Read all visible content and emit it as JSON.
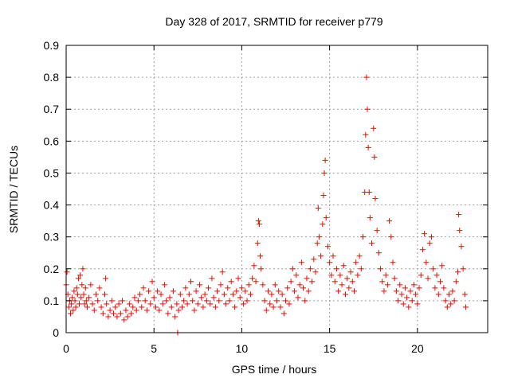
{
  "chart_data": {
    "type": "scatter",
    "title": "Day 328 of 2017, SRMTID for receiver p779",
    "xlabel": "GPS time / hours",
    "ylabel": "SRMTID / TECUs",
    "xlim": [
      0,
      24
    ],
    "ylim": [
      0,
      0.9
    ],
    "xticks": [
      0,
      5,
      10,
      15,
      20
    ],
    "xtick_labels": [
      "0",
      "5",
      "10",
      "15",
      "20"
    ],
    "yticks": [
      0,
      0.1,
      0.2,
      0.3,
      0.4,
      0.5,
      0.6,
      0.7,
      0.8,
      0.9
    ],
    "ytick_labels": [
      "0",
      "0.1",
      "0.2",
      "0.3",
      "0.4",
      "0.5",
      "0.6",
      "0.7",
      "0.8",
      "0.9"
    ],
    "grid": true,
    "marker": "plus",
    "series": [
      {
        "name": "SRMTID",
        "color": "#ff0000",
        "points": [
          [
            0.0,
            0.15
          ],
          [
            0.05,
            0.19
          ],
          [
            0.1,
            0.12
          ],
          [
            0.15,
            0.08
          ],
          [
            0.2,
            0.1
          ],
          [
            0.25,
            0.06
          ],
          [
            0.3,
            0.09
          ],
          [
            0.35,
            0.11
          ],
          [
            0.4,
            0.07
          ],
          [
            0.45,
            0.13
          ],
          [
            0.5,
            0.1
          ],
          [
            0.55,
            0.08
          ],
          [
            0.6,
            0.14
          ],
          [
            0.65,
            0.12
          ],
          [
            0.7,
            0.17
          ],
          [
            0.75,
            0.09
          ],
          [
            0.8,
            0.18
          ],
          [
            0.85,
            0.11
          ],
          [
            0.9,
            0.15
          ],
          [
            0.95,
            0.2
          ],
          [
            1.0,
            0.12
          ],
          [
            1.05,
            0.09
          ],
          [
            1.1,
            0.14
          ],
          [
            1.15,
            0.1
          ],
          [
            1.2,
            0.08
          ],
          [
            1.3,
            0.11
          ],
          [
            1.4,
            0.15
          ],
          [
            1.5,
            0.09
          ],
          [
            1.6,
            0.07
          ],
          [
            1.7,
            0.12
          ],
          [
            1.8,
            0.1
          ],
          [
            1.9,
            0.14
          ],
          [
            2.0,
            0.08
          ],
          [
            2.1,
            0.06
          ],
          [
            2.2,
            0.12
          ],
          [
            2.25,
            0.17
          ],
          [
            2.3,
            0.09
          ],
          [
            2.4,
            0.05
          ],
          [
            2.5,
            0.07
          ],
          [
            2.6,
            0.1
          ],
          [
            2.7,
            0.06
          ],
          [
            2.8,
            0.08
          ],
          [
            2.9,
            0.05
          ],
          [
            3.0,
            0.09
          ],
          [
            3.1,
            0.06
          ],
          [
            3.2,
            0.1
          ],
          [
            3.3,
            0.04
          ],
          [
            3.4,
            0.07
          ],
          [
            3.5,
            0.05
          ],
          [
            3.6,
            0.09
          ],
          [
            3.7,
            0.06
          ],
          [
            3.8,
            0.08
          ],
          [
            3.9,
            0.11
          ],
          [
            4.0,
            0.07
          ],
          [
            4.1,
            0.1
          ],
          [
            4.2,
            0.12
          ],
          [
            4.3,
            0.08
          ],
          [
            4.4,
            0.14
          ],
          [
            4.5,
            0.1
          ],
          [
            4.6,
            0.07
          ],
          [
            4.7,
            0.13
          ],
          [
            4.8,
            0.09
          ],
          [
            4.9,
            0.16
          ],
          [
            5.0,
            0.11
          ],
          [
            5.1,
            0.08
          ],
          [
            5.2,
            0.13
          ],
          [
            5.3,
            0.07
          ],
          [
            5.4,
            0.12
          ],
          [
            5.5,
            0.09
          ],
          [
            5.6,
            0.15
          ],
          [
            5.7,
            0.1
          ],
          [
            5.8,
            0.06
          ],
          [
            5.9,
            0.11
          ],
          [
            6.0,
            0.08
          ],
          [
            6.1,
            0.13
          ],
          [
            6.2,
            0.05
          ],
          [
            6.3,
            0.09
          ],
          [
            6.35,
            0.0
          ],
          [
            6.4,
            0.07
          ],
          [
            6.5,
            0.12
          ],
          [
            6.6,
            0.08
          ],
          [
            6.7,
            0.1
          ],
          [
            6.8,
            0.14
          ],
          [
            6.9,
            0.09
          ],
          [
            7.0,
            0.12
          ],
          [
            7.1,
            0.16
          ],
          [
            7.2,
            0.1
          ],
          [
            7.3,
            0.07
          ],
          [
            7.4,
            0.13
          ],
          [
            7.5,
            0.09
          ],
          [
            7.6,
            0.15
          ],
          [
            7.7,
            0.11
          ],
          [
            7.8,
            0.08
          ],
          [
            7.9,
            0.12
          ],
          [
            8.0,
            0.1
          ],
          [
            8.1,
            0.14
          ],
          [
            8.2,
            0.09
          ],
          [
            8.3,
            0.17
          ],
          [
            8.4,
            0.11
          ],
          [
            8.5,
            0.08
          ],
          [
            8.6,
            0.13
          ],
          [
            8.7,
            0.1
          ],
          [
            8.8,
            0.15
          ],
          [
            8.9,
            0.19
          ],
          [
            9.0,
            0.12
          ],
          [
            9.1,
            0.09
          ],
          [
            9.2,
            0.14
          ],
          [
            9.3,
            0.1
          ],
          [
            9.4,
            0.16
          ],
          [
            9.5,
            0.12
          ],
          [
            9.6,
            0.08
          ],
          [
            9.7,
            0.13
          ],
          [
            9.8,
            0.17
          ],
          [
            9.9,
            0.11
          ],
          [
            10.0,
            0.14
          ],
          [
            10.1,
            0.09
          ],
          [
            10.2,
            0.13
          ],
          [
            10.3,
            0.1
          ],
          [
            10.4,
            0.15
          ],
          [
            10.5,
            0.12
          ],
          [
            10.6,
            0.17
          ],
          [
            10.7,
            0.21
          ],
          [
            10.8,
            0.16
          ],
          [
            10.9,
            0.28
          ],
          [
            10.95,
            0.35
          ],
          [
            11.0,
            0.34
          ],
          [
            11.05,
            0.24
          ],
          [
            11.1,
            0.2
          ],
          [
            11.2,
            0.15
          ],
          [
            11.3,
            0.1
          ],
          [
            11.4,
            0.07
          ],
          [
            11.5,
            0.13
          ],
          [
            11.6,
            0.09
          ],
          [
            11.7,
            0.12
          ],
          [
            11.8,
            0.08
          ],
          [
            11.9,
            0.15
          ],
          [
            12.0,
            0.1
          ],
          [
            12.1,
            0.13
          ],
          [
            12.2,
            0.08
          ],
          [
            12.3,
            0.12
          ],
          [
            12.4,
            0.06
          ],
          [
            12.5,
            0.1
          ],
          [
            12.6,
            0.14
          ],
          [
            12.7,
            0.09
          ],
          [
            12.8,
            0.16
          ],
          [
            12.9,
            0.2
          ],
          [
            13.0,
            0.13
          ],
          [
            13.1,
            0.18
          ],
          [
            13.2,
            0.11
          ],
          [
            13.3,
            0.15
          ],
          [
            13.4,
            0.22
          ],
          [
            13.5,
            0.14
          ],
          [
            13.6,
            0.1
          ],
          [
            13.7,
            0.17
          ],
          [
            13.8,
            0.13
          ],
          [
            13.9,
            0.2
          ],
          [
            14.0,
            0.16
          ],
          [
            14.1,
            0.23
          ],
          [
            14.2,
            0.19
          ],
          [
            14.3,
            0.28
          ],
          [
            14.35,
            0.39
          ],
          [
            14.4,
            0.3
          ],
          [
            14.5,
            0.24
          ],
          [
            14.6,
            0.34
          ],
          [
            14.65,
            0.43
          ],
          [
            14.7,
            0.5
          ],
          [
            14.75,
            0.54
          ],
          [
            14.8,
            0.36
          ],
          [
            14.9,
            0.27
          ],
          [
            15.0,
            0.22
          ],
          [
            15.1,
            0.18
          ],
          [
            15.2,
            0.24
          ],
          [
            15.3,
            0.16
          ],
          [
            15.4,
            0.2
          ],
          [
            15.5,
            0.13
          ],
          [
            15.6,
            0.18
          ],
          [
            15.7,
            0.15
          ],
          [
            15.8,
            0.21
          ],
          [
            15.9,
            0.12
          ],
          [
            16.0,
            0.17
          ],
          [
            16.1,
            0.14
          ],
          [
            16.2,
            0.19
          ],
          [
            16.3,
            0.16
          ],
          [
            16.4,
            0.13
          ],
          [
            16.5,
            0.22
          ],
          [
            16.6,
            0.18
          ],
          [
            16.7,
            0.24
          ],
          [
            16.8,
            0.2
          ],
          [
            16.9,
            0.3
          ],
          [
            17.0,
            0.44
          ],
          [
            17.05,
            0.62
          ],
          [
            17.1,
            0.8
          ],
          [
            17.15,
            0.7
          ],
          [
            17.2,
            0.58
          ],
          [
            17.25,
            0.44
          ],
          [
            17.3,
            0.36
          ],
          [
            17.4,
            0.28
          ],
          [
            17.5,
            0.64
          ],
          [
            17.55,
            0.55
          ],
          [
            17.6,
            0.42
          ],
          [
            17.7,
            0.32
          ],
          [
            17.8,
            0.25
          ],
          [
            17.9,
            0.2
          ],
          [
            18.0,
            0.16
          ],
          [
            18.1,
            0.13
          ],
          [
            18.2,
            0.18
          ],
          [
            18.3,
            0.15
          ],
          [
            18.4,
            0.35
          ],
          [
            18.5,
            0.3
          ],
          [
            18.6,
            0.22
          ],
          [
            18.7,
            0.17
          ],
          [
            18.8,
            0.13
          ],
          [
            18.9,
            0.1
          ],
          [
            19.0,
            0.15
          ],
          [
            19.1,
            0.12
          ],
          [
            19.2,
            0.09
          ],
          [
            19.3,
            0.14
          ],
          [
            19.4,
            0.11
          ],
          [
            19.5,
            0.08
          ],
          [
            19.6,
            0.13
          ],
          [
            19.7,
            0.1
          ],
          [
            19.8,
            0.15
          ],
          [
            19.9,
            0.12
          ],
          [
            20.0,
            0.09
          ],
          [
            20.1,
            0.14
          ],
          [
            20.2,
            0.18
          ],
          [
            20.3,
            0.26
          ],
          [
            20.4,
            0.31
          ],
          [
            20.5,
            0.22
          ],
          [
            20.6,
            0.17
          ],
          [
            20.7,
            0.28
          ],
          [
            20.8,
            0.3
          ],
          [
            20.9,
            0.2
          ],
          [
            21.0,
            0.14
          ],
          [
            21.1,
            0.18
          ],
          [
            21.2,
            0.12
          ],
          [
            21.3,
            0.16
          ],
          [
            21.4,
            0.21
          ],
          [
            21.5,
            0.14
          ],
          [
            21.6,
            0.1
          ],
          [
            21.7,
            0.08
          ],
          [
            21.8,
            0.12
          ],
          [
            21.9,
            0.09
          ],
          [
            22.0,
            0.13
          ],
          [
            22.1,
            0.1
          ],
          [
            22.2,
            0.16
          ],
          [
            22.3,
            0.19
          ],
          [
            22.35,
            0.37
          ],
          [
            22.4,
            0.32
          ],
          [
            22.5,
            0.27
          ],
          [
            22.6,
            0.2
          ],
          [
            22.7,
            0.12
          ],
          [
            22.75,
            0.08
          ]
        ]
      }
    ]
  }
}
